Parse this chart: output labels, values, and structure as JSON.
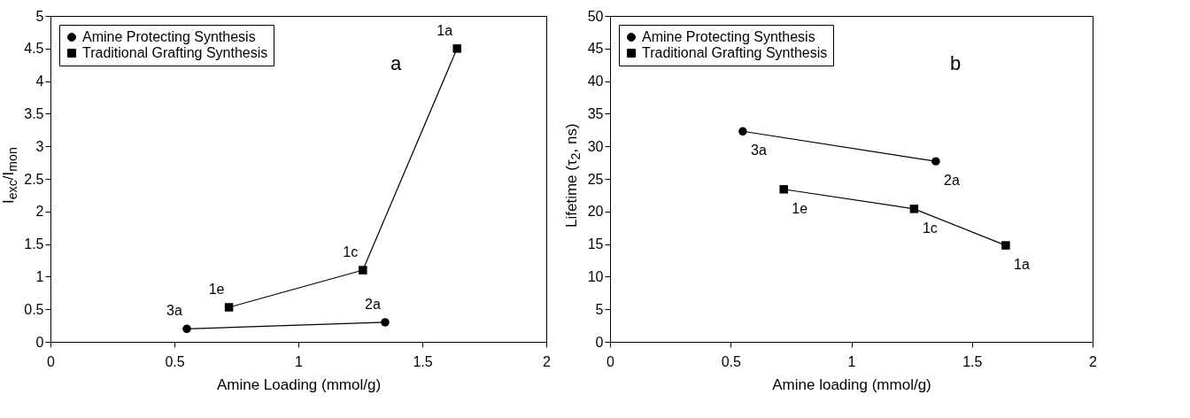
{
  "chart_data": [
    {
      "type": "line",
      "xlabel": "Amine Loading (mmol/g)",
      "ylabel": "I$_{exc}$/I$_{mon}$",
      "xlim": [
        0,
        2
      ],
      "xticks": [
        0,
        0.5,
        1,
        1.5,
        2
      ],
      "ylim": [
        0,
        5
      ],
      "yticks": [
        0,
        0.5,
        1,
        1.5,
        2,
        2.5,
        3,
        3.5,
        4,
        4.5,
        5
      ],
      "grid": false,
      "legend": "top left",
      "series": [
        {
          "name": "Amine Protecting Synthesis",
          "color": "#000000",
          "marker": "circle",
          "x": [
            0.55,
            1.35
          ],
          "values": [
            0.2,
            0.3
          ]
        },
        {
          "name": "Traditional Grafting Synthesis",
          "color": "#000000",
          "marker": "square",
          "x": [
            0.72,
            1.26,
            1.64
          ],
          "values": [
            0.53,
            1.1,
            4.5
          ]
        }
      ],
      "annotations": [
        "a",
        {
          "text": "3a",
          "x": 0.55,
          "y": 0.2
        },
        {
          "text": "2a",
          "x": 1.35,
          "y": 0.3
        },
        {
          "text": "1e",
          "x": 0.72,
          "y": 0.53
        },
        {
          "text": "1c",
          "x": 1.26,
          "y": 1.1
        },
        {
          "text": "1a",
          "x": 1.64,
          "y": 4.5
        }
      ]
    },
    {
      "type": "line",
      "xlabel": "Amine loading (mmol/g)",
      "ylabel": "Lifetime (τ$_{2}$, ns)",
      "xlim": [
        0,
        2
      ],
      "xticks": [
        0,
        0.5,
        1,
        1.5,
        2
      ],
      "ylim": [
        0,
        50
      ],
      "yticks": [
        0,
        5,
        10,
        15,
        20,
        25,
        30,
        35,
        40,
        45,
        50
      ],
      "grid": false,
      "legend": "top left",
      "series": [
        {
          "name": "Amine Protecting Synthesis",
          "color": "#000000",
          "marker": "circle",
          "x": [
            0.55,
            1.35
          ],
          "values": [
            32.3,
            27.7
          ]
        },
        {
          "name": "Traditional Grafting Synthesis",
          "color": "#000000",
          "marker": "square",
          "x": [
            0.72,
            1.26,
            1.64
          ],
          "values": [
            23.4,
            20.4,
            14.8
          ]
        }
      ],
      "annotations": [
        "b",
        {
          "text": "3a",
          "x": 0.55,
          "y": 32.3
        },
        {
          "text": "2a",
          "x": 1.35,
          "y": 27.7
        },
        {
          "text": "1e",
          "x": 0.72,
          "y": 23.4
        },
        {
          "text": "1c",
          "x": 1.26,
          "y": 20.4
        },
        {
          "text": "1a",
          "x": 1.64,
          "y": 14.8
        }
      ]
    }
  ]
}
